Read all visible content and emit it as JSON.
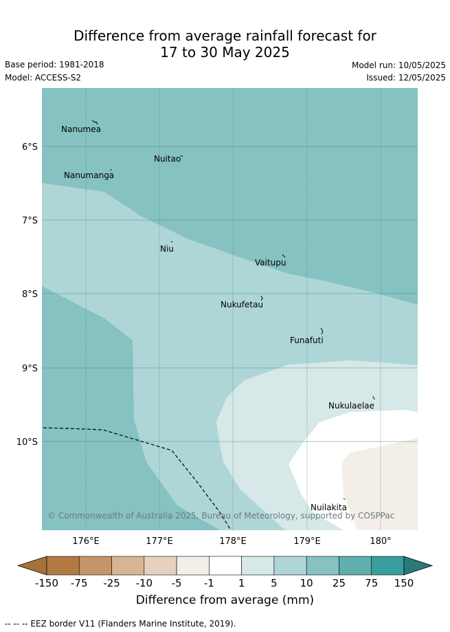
{
  "title_line1": "Difference from average rainfall forecast for",
  "title_line2": "17 to 30 May 2025",
  "base_period": "Base period: 1981-2018",
  "model": "Model: ACCESS-S2",
  "model_run": "Model run: 10/05/2025",
  "issued": "Issued: 12/05/2025",
  "lat_labels": [
    "6°S",
    "7°S",
    "8°S",
    "9°S",
    "10°S"
  ],
  "lon_labels": [
    "176°E",
    "177°E",
    "178°E",
    "179°E",
    "180°"
  ],
  "places": [
    "Nanumea",
    "Nuitao",
    "Nanumanga",
    "Niu",
    "Vaitupu",
    "Nukufetau",
    "Funafuti",
    "Nukulaelae",
    "Nuilakita"
  ],
  "copyright": "© Commonwealth of Australia 2025, Bureau of Meteorology, supported by COSPPac",
  "colorbar": {
    "ticks": [
      "-150",
      "-75",
      "-25",
      "-10",
      "-5",
      "-1",
      "1",
      "5",
      "10",
      "25",
      "75",
      "150"
    ],
    "colors": [
      "#a8713b",
      "#b07a42",
      "#c4956a",
      "#d6b594",
      "#e6d1bf",
      "#f3eee8",
      "#ffffff",
      "#d6e8e8",
      "#afd6d6",
      "#85c2c1",
      "#5eafae",
      "#389e9d",
      "#2a7a7a"
    ],
    "label": "Difference from average (mm)"
  },
  "eez_note": "-- -- -- EEZ border V11 (Flanders Marine Institute, 2019)."
}
